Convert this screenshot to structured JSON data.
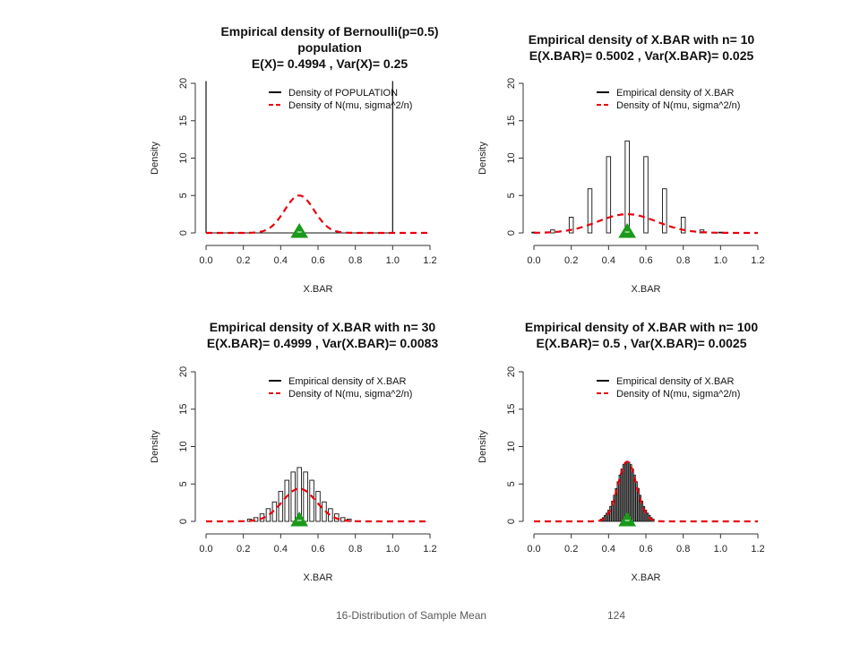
{
  "footer": {
    "title": "16-Distribution of Sample Mean",
    "page": "124"
  },
  "colors": {
    "normal_curve": "#e8000b",
    "mean_marker": "#1a9a1a",
    "axis": "#333333",
    "hist_fill": "#ffffff"
  },
  "chart_data": [
    {
      "type": "bar",
      "title_lines": [
        "Empirical density of Bernoulli(p=0.5)",
        "population",
        "E(X)= 0.4994 , Var(X)= 0.25"
      ],
      "xlabel": "X.BAR",
      "ylabel": "Density",
      "xlim": [
        0,
        1.2
      ],
      "ylim": [
        0,
        20
      ],
      "xticks": [
        "0.0",
        "0.2",
        "0.4",
        "0.6",
        "0.8",
        "1.0",
        "1.2"
      ],
      "yticks": [
        "0",
        "5",
        "10",
        "15",
        "20"
      ],
      "legend": {
        "position": "top-right",
        "entries": [
          "Density of POPULATION",
          "Density of N(mu, sigma^2/n)"
        ]
      },
      "population_spikes": [
        0,
        1
      ],
      "bar_width": 0,
      "bars": {
        "x": [],
        "density": []
      },
      "normal": {
        "mu": 0.5,
        "sd": 0.0791,
        "peak": 5.0
      },
      "marker_x": 0.5
    },
    {
      "type": "bar",
      "title_lines": [
        "Empirical density of X.BAR with n= 10",
        "E(X.BAR)= 0.5002 , Var(X.BAR)= 0.025"
      ],
      "xlabel": "X.BAR",
      "ylabel": "Density",
      "xlim": [
        0,
        1.2
      ],
      "ylim": [
        0,
        20
      ],
      "xticks": [
        "0.0",
        "0.2",
        "0.4",
        "0.6",
        "0.8",
        "1.0",
        "1.2"
      ],
      "yticks": [
        "0",
        "5",
        "10",
        "15",
        "20"
      ],
      "legend": {
        "position": "top-right",
        "entries": [
          "Empirical density of X.BAR",
          "Density of N(mu, sigma^2/n)"
        ]
      },
      "population_spikes": [],
      "bar_width": 0.022,
      "bars": {
        "x": [
          0.0,
          0.1,
          0.2,
          0.3,
          0.4,
          0.5,
          0.6,
          0.7,
          0.8,
          0.9,
          1.0
        ],
        "density": [
          0.1,
          0.4,
          2.1,
          5.9,
          10.2,
          12.3,
          10.2,
          5.9,
          2.1,
          0.4,
          0.1
        ]
      },
      "normal": {
        "mu": 0.5,
        "sd": 0.158,
        "peak": 2.5
      },
      "marker_x": 0.5
    },
    {
      "type": "bar",
      "title_lines": [
        "Empirical density of X.BAR with n= 30",
        "E(X.BAR)= 0.4999 , Var(X.BAR)= 0.0083"
      ],
      "xlabel": "X.BAR",
      "ylabel": "Density",
      "xlim": [
        0,
        1.2
      ],
      "ylim": [
        0,
        20
      ],
      "xticks": [
        "0.0",
        "0.2",
        "0.4",
        "0.6",
        "0.8",
        "1.0",
        "1.2"
      ],
      "yticks": [
        "0",
        "5",
        "10",
        "15",
        "20"
      ],
      "legend": {
        "position": "top-right",
        "entries": [
          "Empirical density of X.BAR",
          "Density of N(mu, sigma^2/n)"
        ]
      },
      "population_spikes": [],
      "bar_width": 0.022,
      "bars": {
        "x": [
          0.2333,
          0.2667,
          0.3,
          0.3333,
          0.3667,
          0.4,
          0.4333,
          0.4667,
          0.5,
          0.5333,
          0.5667,
          0.6,
          0.6333,
          0.6667,
          0.7,
          0.7333,
          0.7667
        ],
        "density": [
          0.3,
          0.5,
          1.0,
          1.7,
          2.6,
          4.0,
          5.5,
          6.6,
          7.2,
          6.6,
          5.5,
          4.0,
          2.6,
          1.7,
          1.0,
          0.5,
          0.3
        ]
      },
      "normal": {
        "mu": 0.5,
        "sd": 0.0913,
        "peak": 4.37
      },
      "marker_x": 0.5
    },
    {
      "type": "bar",
      "title_lines": [
        "Empirical density of X.BAR with n= 100",
        "E(X.BAR)= 0.5 , Var(X.BAR)= 0.0025"
      ],
      "xlabel": "X.BAR",
      "ylabel": "Density",
      "xlim": [
        0,
        1.2
      ],
      "ylim": [
        0,
        20
      ],
      "xticks": [
        "0.0",
        "0.2",
        "0.4",
        "0.6",
        "0.8",
        "1.0",
        "1.2"
      ],
      "yticks": [
        "0",
        "5",
        "10",
        "15",
        "20"
      ],
      "legend": {
        "position": "top-right",
        "entries": [
          "Empirical density of X.BAR",
          "Density of N(mu, sigma^2/n)"
        ]
      },
      "population_spikes": [],
      "bar_width": 0.008,
      "bars": {
        "x": [
          0.36,
          0.37,
          0.38,
          0.39,
          0.4,
          0.41,
          0.42,
          0.43,
          0.44,
          0.45,
          0.46,
          0.47,
          0.48,
          0.49,
          0.5,
          0.51,
          0.52,
          0.53,
          0.54,
          0.55,
          0.56,
          0.57,
          0.58,
          0.59,
          0.6,
          0.61,
          0.62,
          0.63,
          0.64
        ],
        "density": [
          0.3,
          0.5,
          0.8,
          1.1,
          1.5,
          2.0,
          2.7,
          3.5,
          4.4,
          5.3,
          6.2,
          7.0,
          7.6,
          7.9,
          8.0,
          7.9,
          7.6,
          7.0,
          6.2,
          5.3,
          4.4,
          3.5,
          2.7,
          2.0,
          1.5,
          1.1,
          0.8,
          0.5,
          0.3
        ]
      },
      "normal": {
        "mu": 0.5,
        "sd": 0.05,
        "peak": 7.98
      },
      "marker_x": 0.5
    }
  ]
}
